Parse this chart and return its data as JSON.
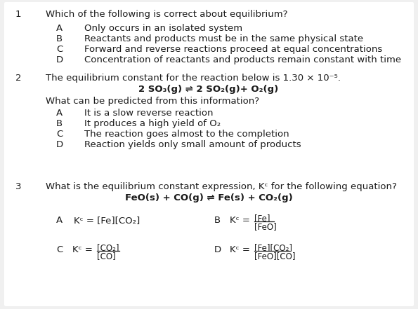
{
  "bg_color": "#f0f0f0",
  "panel_color": "#f5f5f5",
  "text_color": "#1a1a1a",
  "q1_num": "1",
  "q1_text": "Which of the following is correct about equilibrium?",
  "q1_A": "Only occurs in an isolated system",
  "q1_B": "Reactants and products must be in the same physical state",
  "q1_C": "Forward and reverse reactions proceed at equal concentrations",
  "q1_D": "Concentration of reactants and products remain constant with time",
  "q2_num": "2",
  "q2_text": "The equilibrium constant for the reaction below is 1.30 × 10⁻⁵.",
  "q2_rxn": "2 SO₃(g) ⇌ 2 SO₂(g)+ O₂(g)",
  "q2_sub": "What can be predicted from this information?",
  "q2_A": "It is a slow reverse reaction",
  "q2_B": "It produces a high yield of O₂",
  "q2_C": "The reaction goes almost to the completion",
  "q2_D": "Reaction yields only small amount of products",
  "q3_num": "3",
  "q3_text": "What is the equilibrium constant expression, Kᶜ for the following equation?",
  "q3_rxn": "FeO(s) + CO(g) ⇌ Fe(s) + CO₂(g)",
  "q3_A_text": "Kᶜ = [Fe][CO₂]",
  "q3_B_prefix": "Kᶜ =",
  "q3_B_num": "[Fe]",
  "q3_B_den": "[FeO]",
  "q3_C_prefix": "Kᶜ =",
  "q3_C_num": "[CO₂]",
  "q3_C_den": "[CO]",
  "q3_D_prefix": "Kᶜ =",
  "q3_D_num": "[Fe][CO₂]",
  "q3_D_den": "[FeO][CO]"
}
